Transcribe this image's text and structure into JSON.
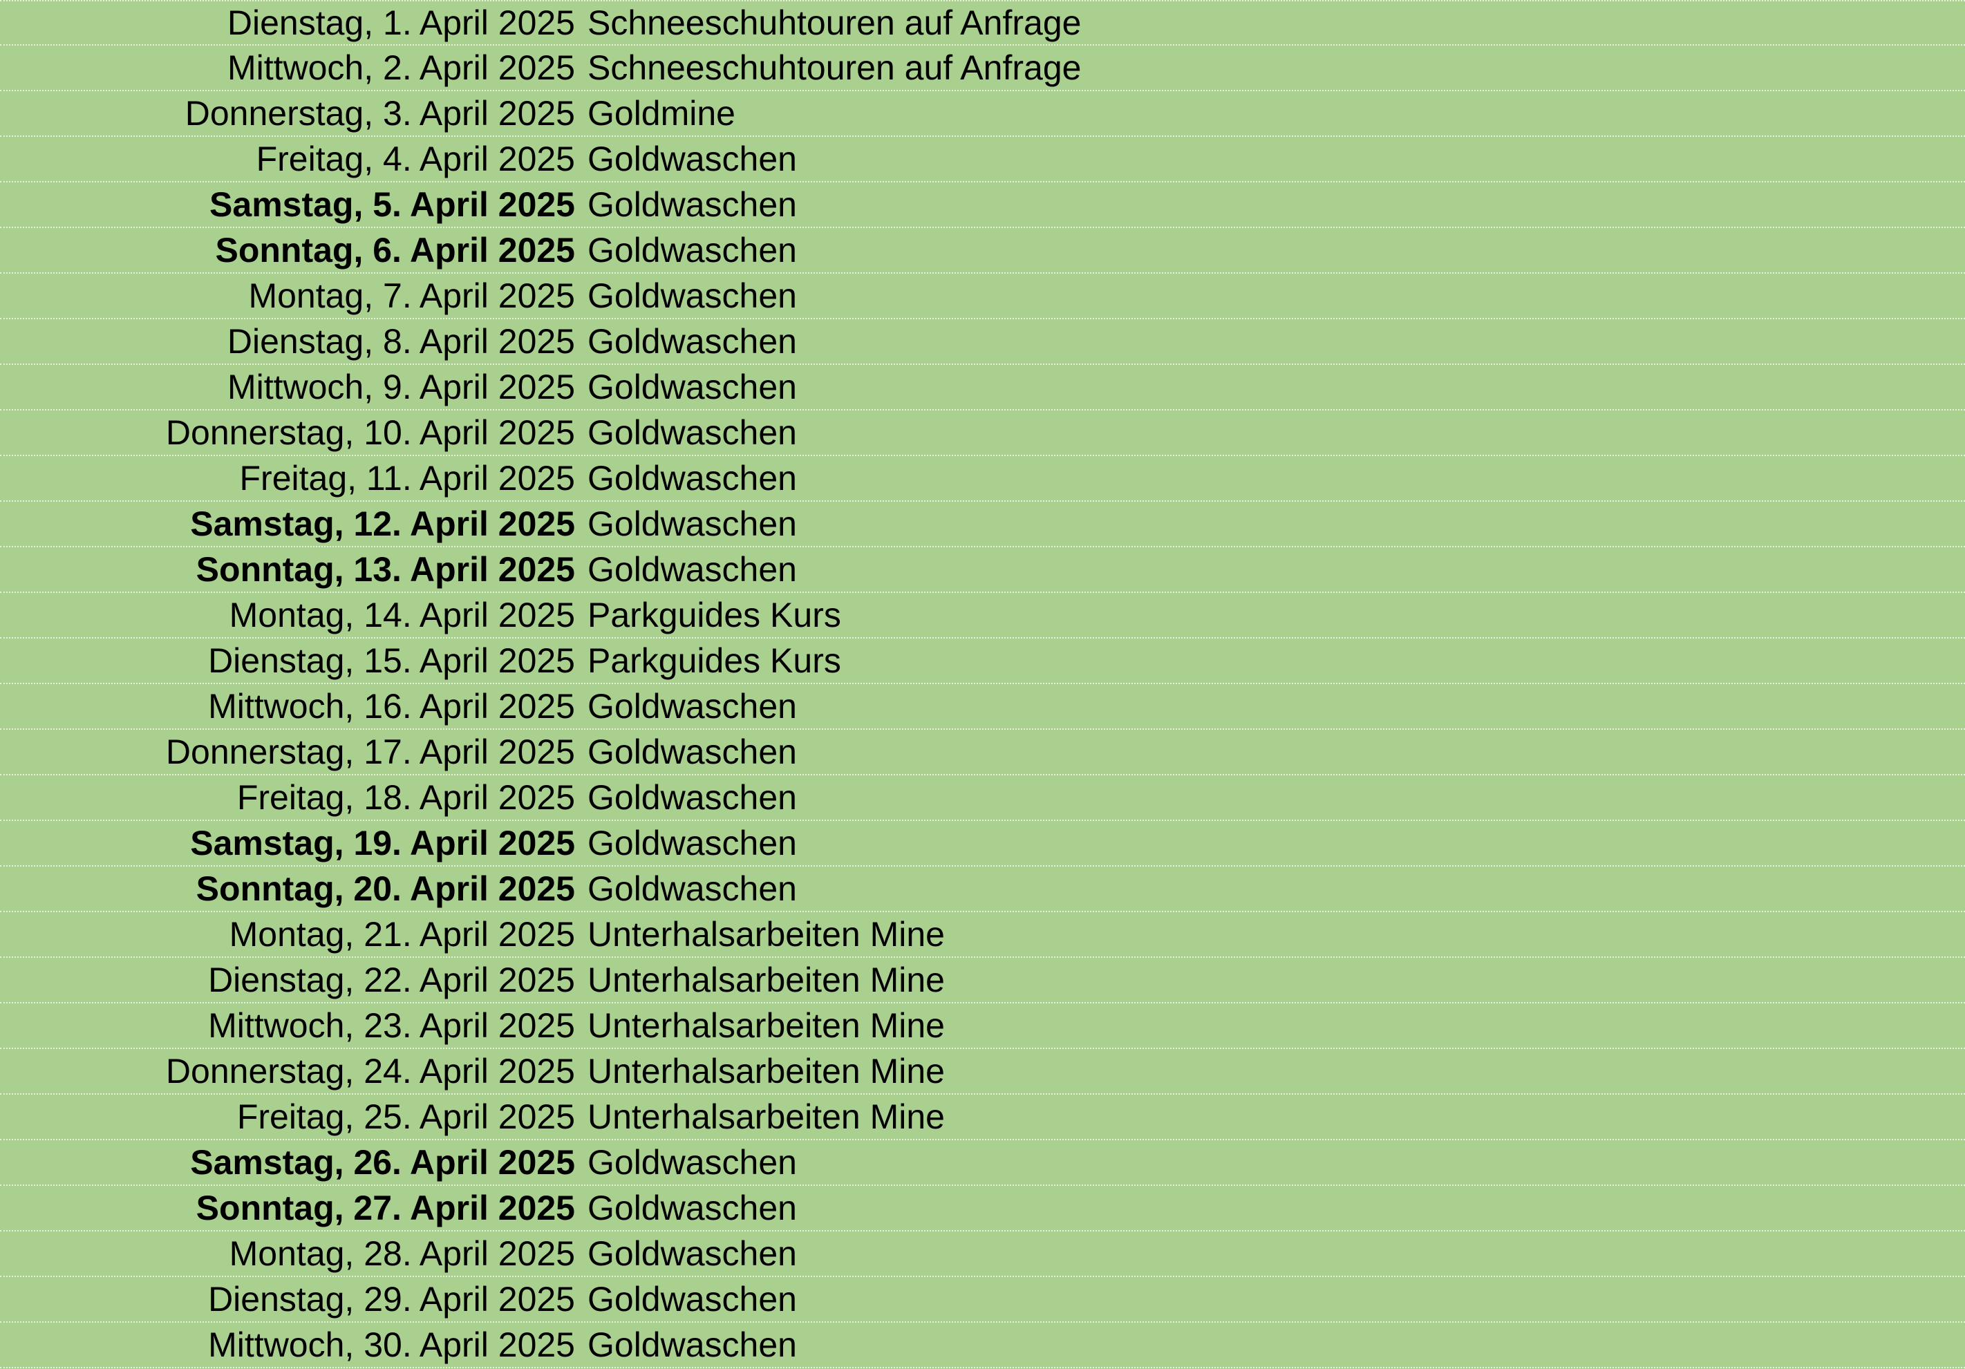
{
  "background_color": "#a9d08e",
  "rows": [
    {
      "date": "Dienstag, 1. April 2025",
      "activity": "Schneeschuhtouren auf Anfrage",
      "weekend": false
    },
    {
      "date": "Mittwoch, 2. April 2025",
      "activity": "Schneeschuhtouren auf Anfrage",
      "weekend": false
    },
    {
      "date": "Donnerstag, 3. April 2025",
      "activity": "Goldmine",
      "weekend": false
    },
    {
      "date": "Freitag, 4. April 2025",
      "activity": "Goldwaschen",
      "weekend": false
    },
    {
      "date": "Samstag, 5. April 2025",
      "activity": "Goldwaschen",
      "weekend": true
    },
    {
      "date": "Sonntag, 6. April 2025",
      "activity": "Goldwaschen",
      "weekend": true
    },
    {
      "date": "Montag, 7. April 2025",
      "activity": "Goldwaschen",
      "weekend": false
    },
    {
      "date": "Dienstag, 8. April 2025",
      "activity": "Goldwaschen",
      "weekend": false
    },
    {
      "date": "Mittwoch, 9. April 2025",
      "activity": "Goldwaschen",
      "weekend": false
    },
    {
      "date": "Donnerstag, 10. April 2025",
      "activity": "Goldwaschen",
      "weekend": false
    },
    {
      "date": "Freitag, 11. April 2025",
      "activity": "Goldwaschen",
      "weekend": false
    },
    {
      "date": "Samstag, 12. April 2025",
      "activity": "Goldwaschen",
      "weekend": true
    },
    {
      "date": "Sonntag, 13. April 2025",
      "activity": "Goldwaschen",
      "weekend": true
    },
    {
      "date": "Montag, 14. April 2025",
      "activity": "Parkguides Kurs",
      "weekend": false
    },
    {
      "date": "Dienstag, 15. April 2025",
      "activity": "Parkguides Kurs",
      "weekend": false
    },
    {
      "date": "Mittwoch, 16. April 2025",
      "activity": "Goldwaschen",
      "weekend": false
    },
    {
      "date": "Donnerstag, 17. April 2025",
      "activity": "Goldwaschen",
      "weekend": false
    },
    {
      "date": "Freitag, 18. April 2025",
      "activity": "Goldwaschen",
      "weekend": false
    },
    {
      "date": "Samstag, 19. April 2025",
      "activity": "Goldwaschen",
      "weekend": true
    },
    {
      "date": "Sonntag, 20. April 2025",
      "activity": "Goldwaschen",
      "weekend": true
    },
    {
      "date": "Montag, 21. April 2025",
      "activity": "Unterhalsarbeiten Mine",
      "weekend": false
    },
    {
      "date": "Dienstag, 22. April 2025",
      "activity": "Unterhalsarbeiten Mine",
      "weekend": false
    },
    {
      "date": "Mittwoch, 23. April 2025",
      "activity": "Unterhalsarbeiten Mine",
      "weekend": false
    },
    {
      "date": "Donnerstag, 24. April 2025",
      "activity": "Unterhalsarbeiten Mine",
      "weekend": false
    },
    {
      "date": "Freitag, 25. April 2025",
      "activity": "Unterhalsarbeiten Mine",
      "weekend": false
    },
    {
      "date": "Samstag, 26. April 2025",
      "activity": "Goldwaschen",
      "weekend": true
    },
    {
      "date": "Sonntag, 27. April 2025",
      "activity": "Goldwaschen",
      "weekend": true
    },
    {
      "date": "Montag, 28. April 2025",
      "activity": "Goldwaschen",
      "weekend": false
    },
    {
      "date": "Dienstag, 29. April 2025",
      "activity": "Goldwaschen",
      "weekend": false
    },
    {
      "date": "Mittwoch, 30. April 2025",
      "activity": "Goldwaschen",
      "weekend": false
    }
  ]
}
